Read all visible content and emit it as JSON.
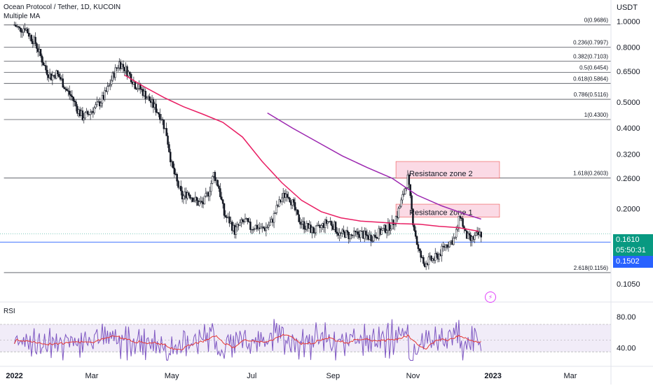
{
  "header": {
    "symbol_line": "Ocean Protocol / Tether, 1D, KUCOIN",
    "indicator_line": "Multiple MA"
  },
  "axis": {
    "currency": "USDT",
    "rsi_label": "RSI"
  },
  "colors": {
    "up": "#26a69a",
    "candle": "#131722",
    "ma_short": "#e91e63",
    "ma_long": "#9c27b0",
    "resistance_fill": "#f8bbd0",
    "resistance_border": "#ef5350",
    "fib_line": "#131722",
    "last_price": "#089981",
    "current_line": "#2962ff",
    "rsi": "#7e57c2",
    "rsi_ma": "#e53935"
  },
  "price_tags": {
    "last_price": "0.1610",
    "countdown": "05:50:31",
    "line_price": "0.1502"
  },
  "chart_data": {
    "type": "line",
    "title": "Ocean Protocol / Tether, 1D, KUCOIN",
    "y_scale": "log",
    "y_ticks": [
      "1.0000",
      "0.8000",
      "0.6500",
      "0.5000",
      "0.4000",
      "0.3200",
      "0.2600",
      "0.2000",
      "0.1050"
    ],
    "y_tick_values": [
      1.0,
      0.8,
      0.65,
      0.5,
      0.4,
      0.32,
      0.26,
      0.2,
      0.105
    ],
    "ylim": [
      0.092,
      1.2
    ],
    "x_ticks": [
      "2022",
      "Mar",
      "May",
      "Jul",
      "Sep",
      "Nov",
      "2023",
      "Mar"
    ],
    "x_tick_dates": [
      "2022-01-01",
      "2022-03-01",
      "2022-05-01",
      "2022-07-01",
      "2022-09-01",
      "2022-11-01",
      "2023-01-01",
      "2023-03-01"
    ],
    "xlim": [
      "2021-12-21",
      "2023-04-01"
    ],
    "fib_levels": [
      {
        "label": "0(0.9686)",
        "value": 0.9686
      },
      {
        "label": "0.236(0.7997)",
        "value": 0.7997
      },
      {
        "label": "0.382(0.7103)",
        "value": 0.7103
      },
      {
        "label": "0.5(0.6454)",
        "value": 0.6454
      },
      {
        "label": "0.618(0.5864)",
        "value": 0.5864
      },
      {
        "label": "0.786(0.5116)",
        "value": 0.5116
      },
      {
        "label": "1(0.4300)",
        "value": 0.43
      },
      {
        "label": "1.618(0.2603)",
        "value": 0.2603
      },
      {
        "label": "2.618(0.1156)",
        "value": 0.1156
      }
    ],
    "fib_start": "2021-12-24",
    "zones": [
      {
        "label": "Resistance zone 2",
        "low": 0.26,
        "high": 0.3,
        "start": "2022-10-19",
        "end": "2023-01-06"
      },
      {
        "label": "Resistance zone 1",
        "low": 0.186,
        "high": 0.208,
        "start": "2022-10-19",
        "end": "2023-01-06"
      }
    ],
    "series": [
      {
        "name": "OCEAN/USDT close",
        "x": [
          "2022-01-01",
          "2022-01-05",
          "2022-01-09",
          "2022-01-13",
          "2022-01-17",
          "2022-01-21",
          "2022-01-25",
          "2022-01-29",
          "2022-02-02",
          "2022-02-06",
          "2022-02-10",
          "2022-02-14",
          "2022-02-18",
          "2022-02-22",
          "2022-02-26",
          "2022-03-02",
          "2022-03-06",
          "2022-03-10",
          "2022-03-14",
          "2022-03-18",
          "2022-03-22",
          "2022-03-26",
          "2022-03-30",
          "2022-04-03",
          "2022-04-07",
          "2022-04-11",
          "2022-04-15",
          "2022-04-19",
          "2022-04-23",
          "2022-04-27",
          "2022-05-01",
          "2022-05-05",
          "2022-05-09",
          "2022-05-13",
          "2022-05-17",
          "2022-05-21",
          "2022-05-25",
          "2022-05-29",
          "2022-06-02",
          "2022-06-06",
          "2022-06-10",
          "2022-06-14",
          "2022-06-18",
          "2022-06-22",
          "2022-06-26",
          "2022-06-30",
          "2022-07-04",
          "2022-07-08",
          "2022-07-12",
          "2022-07-16",
          "2022-07-20",
          "2022-07-24",
          "2022-07-28",
          "2022-08-01",
          "2022-08-05",
          "2022-08-09",
          "2022-08-13",
          "2022-08-17",
          "2022-08-21",
          "2022-08-25",
          "2022-08-29",
          "2022-09-02",
          "2022-09-06",
          "2022-09-10",
          "2022-09-14",
          "2022-09-18",
          "2022-09-22",
          "2022-09-26",
          "2022-09-30",
          "2022-10-04",
          "2022-10-08",
          "2022-10-12",
          "2022-10-16",
          "2022-10-20",
          "2022-10-24",
          "2022-10-28",
          "2022-11-01",
          "2022-11-05",
          "2022-11-09",
          "2022-11-13",
          "2022-11-17",
          "2022-11-21",
          "2022-11-25",
          "2022-11-29",
          "2022-12-03",
          "2022-12-07",
          "2022-12-11",
          "2022-12-15",
          "2022-12-19",
          "2022-12-23"
        ],
        "values": [
          0.97,
          0.93,
          0.95,
          0.88,
          0.83,
          0.74,
          0.66,
          0.62,
          0.64,
          0.6,
          0.55,
          0.52,
          0.47,
          0.44,
          0.45,
          0.47,
          0.49,
          0.52,
          0.57,
          0.64,
          0.7,
          0.67,
          0.63,
          0.58,
          0.56,
          0.53,
          0.5,
          0.47,
          0.44,
          0.38,
          0.29,
          0.25,
          0.22,
          0.23,
          0.22,
          0.21,
          0.21,
          0.23,
          0.27,
          0.24,
          0.19,
          0.18,
          0.165,
          0.175,
          0.18,
          0.17,
          0.172,
          0.168,
          0.17,
          0.178,
          0.2,
          0.22,
          0.23,
          0.21,
          0.185,
          0.175,
          0.17,
          0.165,
          0.168,
          0.175,
          0.18,
          0.172,
          0.16,
          0.162,
          0.158,
          0.16,
          0.162,
          0.158,
          0.157,
          0.16,
          0.165,
          0.17,
          0.175,
          0.19,
          0.22,
          0.26,
          0.18,
          0.14,
          0.125,
          0.128,
          0.13,
          0.135,
          0.145,
          0.15,
          0.155,
          0.19,
          0.16,
          0.152,
          0.158,
          0.161
        ]
      },
      {
        "name": "MA short",
        "x": [
          "2022-03-26",
          "2022-04-10",
          "2022-04-25",
          "2022-05-10",
          "2022-05-25",
          "2022-06-09",
          "2022-06-24",
          "2022-07-09",
          "2022-07-24",
          "2022-08-08",
          "2022-08-23",
          "2022-09-07",
          "2022-09-22",
          "2022-10-07",
          "2022-10-22",
          "2022-11-06",
          "2022-11-21",
          "2022-12-06",
          "2022-12-21"
        ],
        "values": [
          0.63,
          0.57,
          0.52,
          0.48,
          0.45,
          0.42,
          0.37,
          0.3,
          0.25,
          0.215,
          0.195,
          0.185,
          0.18,
          0.178,
          0.176,
          0.175,
          0.172,
          0.17,
          0.165
        ]
      },
      {
        "name": "MA long",
        "x": [
          "2022-07-13",
          "2022-08-01",
          "2022-08-20",
          "2022-09-08",
          "2022-09-27",
          "2022-10-16",
          "2022-11-04",
          "2022-11-23",
          "2022-12-12",
          "2022-12-23"
        ],
        "values": [
          0.455,
          0.4,
          0.355,
          0.315,
          0.285,
          0.26,
          0.225,
          0.205,
          0.19,
          0.183
        ]
      }
    ],
    "rsi": {
      "ylim": [
        20,
        95
      ],
      "y_ticks": [
        "80.00",
        "40.00"
      ],
      "y_tick_values": [
        80,
        40
      ],
      "band": [
        70,
        35
      ],
      "mid": 50
    }
  }
}
